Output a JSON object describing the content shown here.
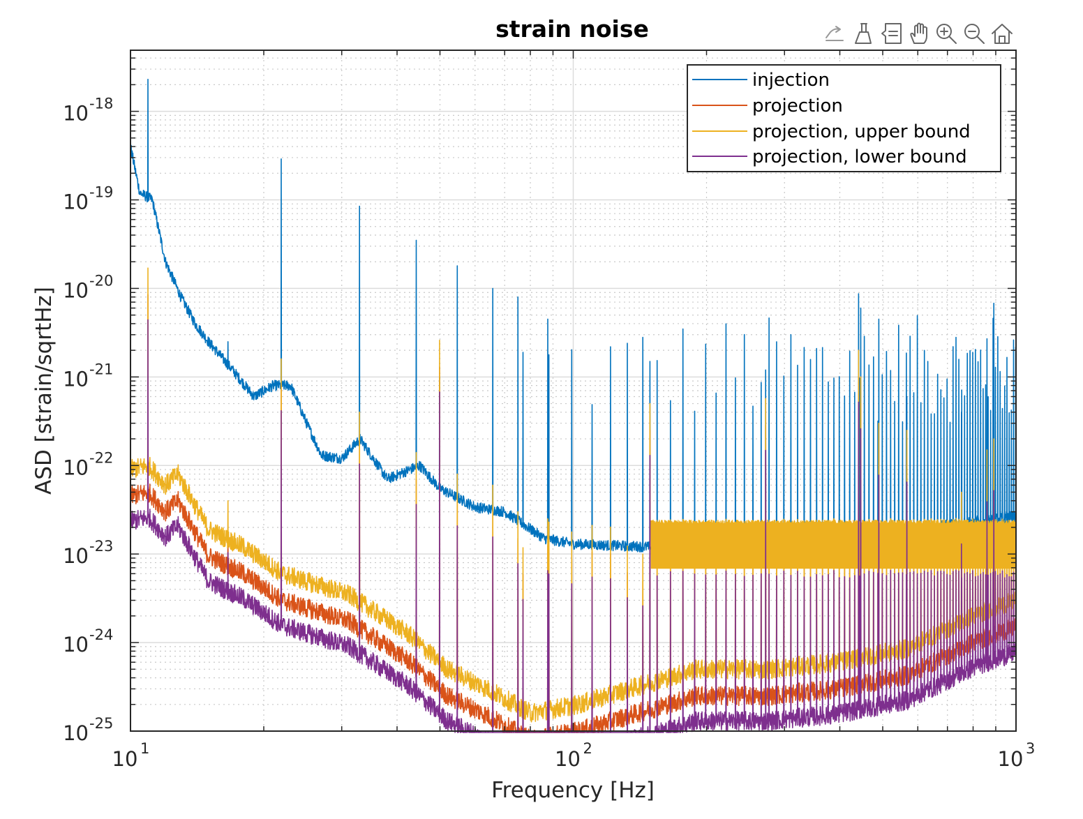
{
  "chart_data": {
    "type": "line",
    "title": "strain noise",
    "xlabel": "Frequency [Hz]",
    "ylabel": "ASD [strain/sqrtHz]",
    "xscale": "log",
    "yscale": "log",
    "xlim": [
      10,
      1000
    ],
    "ylim": [
      1e-25,
      4.9e-18
    ],
    "grid": "on (major solid, minor dotted)",
    "legend_position": "top-right",
    "xticks": [
      {
        "value": 10,
        "base": "10",
        "exp": "1"
      },
      {
        "value": 100,
        "base": "10",
        "exp": "2"
      },
      {
        "value": 1000,
        "base": "10",
        "exp": "3"
      }
    ],
    "yticks": [
      {
        "value": 1e-25,
        "base": "10",
        "exp": "-25"
      },
      {
        "value": 1e-24,
        "base": "10",
        "exp": "-24"
      },
      {
        "value": 1e-23,
        "base": "10",
        "exp": "-23"
      },
      {
        "value": 1e-22,
        "base": "10",
        "exp": "-22"
      },
      {
        "value": 1e-21,
        "base": "10",
        "exp": "-21"
      },
      {
        "value": 1e-20,
        "base": "10",
        "exp": "-20"
      },
      {
        "value": 1e-19,
        "base": "10",
        "exp": "-19"
      },
      {
        "value": 1e-18,
        "base": "10",
        "exp": "-18"
      }
    ],
    "series": [
      {
        "name": "injection",
        "color": "#0072BD",
        "baseline": [
          [
            10,
            4e-19
          ],
          [
            10.5,
            1.2e-19
          ],
          [
            11.2,
            1e-19
          ],
          [
            12,
            2e-20
          ],
          [
            13,
            8e-21
          ],
          [
            14,
            4e-21
          ],
          [
            15,
            2.5e-21
          ],
          [
            17,
            1.2e-21
          ],
          [
            19,
            6e-22
          ],
          [
            21,
            8e-22
          ],
          [
            23,
            8e-22
          ],
          [
            25,
            3e-22
          ],
          [
            27,
            1.3e-22
          ],
          [
            30,
            1.2e-22
          ],
          [
            33,
            2e-22
          ],
          [
            38,
            7e-23
          ],
          [
            45,
            1e-22
          ],
          [
            50,
            5.5e-23
          ],
          [
            60,
            3.4e-23
          ],
          [
            70,
            3e-23
          ],
          [
            86,
            1.5e-23
          ],
          [
            100,
            1.3e-23
          ],
          [
            150,
            1.2e-23
          ],
          [
            200,
            9.5e-24
          ],
          [
            300,
            1.1e-23
          ],
          [
            500,
            1.6e-23
          ],
          [
            1000,
            2.5e-23
          ]
        ]
      },
      {
        "name": "projection",
        "color": "#D95319",
        "ratio_to_upper_bound": 0.5
      },
      {
        "name": "projection, upper bound",
        "color": "#EDB120",
        "baseline": [
          [
            10,
            9e-23
          ],
          [
            11,
            1e-22
          ],
          [
            12,
            6e-23
          ],
          [
            12.8,
            8e-23
          ],
          [
            14,
            3.5e-23
          ],
          [
            15,
            1.9e-23
          ],
          [
            18,
            1.2e-23
          ],
          [
            22,
            6e-24
          ],
          [
            31,
            3.5e-24
          ],
          [
            42,
            1.3e-24
          ],
          [
            52,
            5e-25
          ],
          [
            64,
            3e-25
          ],
          [
            80,
            1.6e-25
          ],
          [
            103,
            2e-25
          ],
          [
            134,
            3e-25
          ],
          [
            190,
            5e-25
          ],
          [
            275,
            5e-25
          ],
          [
            395,
            6e-25
          ],
          [
            567,
            8.5e-25
          ],
          [
            815,
            2.1e-24
          ],
          [
            1000,
            3e-24
          ]
        ]
      },
      {
        "name": "projection, lower bound",
        "color": "#7E2F8E",
        "ratio_to_upper_bound": 0.26
      }
    ],
    "peaks": [
      {
        "f": 10.95,
        "injection": 2.3e-18,
        "upper": 1.7e-20
      },
      {
        "f": 16.6,
        "injection": 2.5e-21,
        "upper": 4e-23
      },
      {
        "f": 21.9,
        "injection": 2.9e-19,
        "upper": 1.6e-21
      },
      {
        "f": 32.9,
        "injection": 8.5e-20,
        "upper": 4e-22
      },
      {
        "f": 44.2,
        "injection": 3.5e-20,
        "upper": 1.4e-22
      },
      {
        "f": 49.9,
        "injection": 1e-21,
        "upper": 2.6e-21
      },
      {
        "f": 54.7,
        "injection": 1.8e-20,
        "upper": 8e-23
      },
      {
        "f": 65.8,
        "injection": 1e-20,
        "upper": 6e-23
      },
      {
        "f": 75,
        "injection": 8e-21,
        "upper": 3e-23
      },
      {
        "f": 87.6,
        "injection": 4.5e-21,
        "upper": 2.5e-23
      },
      {
        "f": 149,
        "injection": 1.5e-21,
        "upper": 5e-22
      },
      {
        "f": 272,
        "injection": 1.2e-21,
        "upper": 5.7e-22
      },
      {
        "f": 441,
        "injection": 8.7e-21,
        "upper": 2e-21
      },
      {
        "f": 446,
        "injection": 6e-21,
        "upper": 1e-21
      },
      {
        "f": 490,
        "injection": 4.5e-21,
        "upper": 3e-22
      },
      {
        "f": 567,
        "injection": 6e-22,
        "upper": 2.5e-22
      },
      {
        "f": 753,
        "injection": 4e-22,
        "upper": 5e-23
      },
      {
        "f": 860,
        "injection": 2.7e-21,
        "upper": 1.5e-22
      },
      {
        "f": 891,
        "injection": 6.8e-21,
        "upper": 2e-22
      }
    ],
    "comb": {
      "start_hz": 77,
      "spacing_hz": 11.1,
      "end_hz": 1000,
      "injection_range": [
        3e-22,
        5e-21
      ],
      "upper_level": 2.3e-23
    }
  },
  "toolbar": [
    "export-icon",
    "brush-icon",
    "datatip-icon",
    "pan-icon",
    "zoom-in-icon",
    "zoom-out-icon",
    "home-icon"
  ]
}
